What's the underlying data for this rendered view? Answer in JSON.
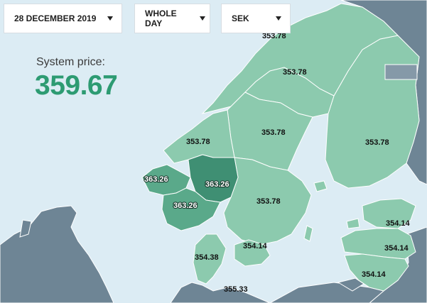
{
  "controls": {
    "date": "28 DECEMBER 2019",
    "period": "WHOLE DAY",
    "currency": "SEK"
  },
  "summary": {
    "label": "System price:",
    "value": "359.67"
  },
  "colors": {
    "water": "#dcecf4",
    "land_other": "#6e8595",
    "area_light": "#8ccaae",
    "area_mid": "#5aa98a",
    "area_dark": "#3f8f73",
    "border": "#ffffff",
    "accent": "#2d9b72"
  },
  "prices": {
    "se1_top": "353.78",
    "se1": "353.78",
    "se2": "353.78",
    "fi": "353.78",
    "no_west": "353.78",
    "no_sw": "363.26",
    "no_s": "363.26",
    "no_e": "363.26",
    "se3": "353.78",
    "dk1": "354.38",
    "dk2": "354.14",
    "de": "355.33",
    "ee": "354.14",
    "lv": "354.14",
    "lt": "354.14"
  }
}
